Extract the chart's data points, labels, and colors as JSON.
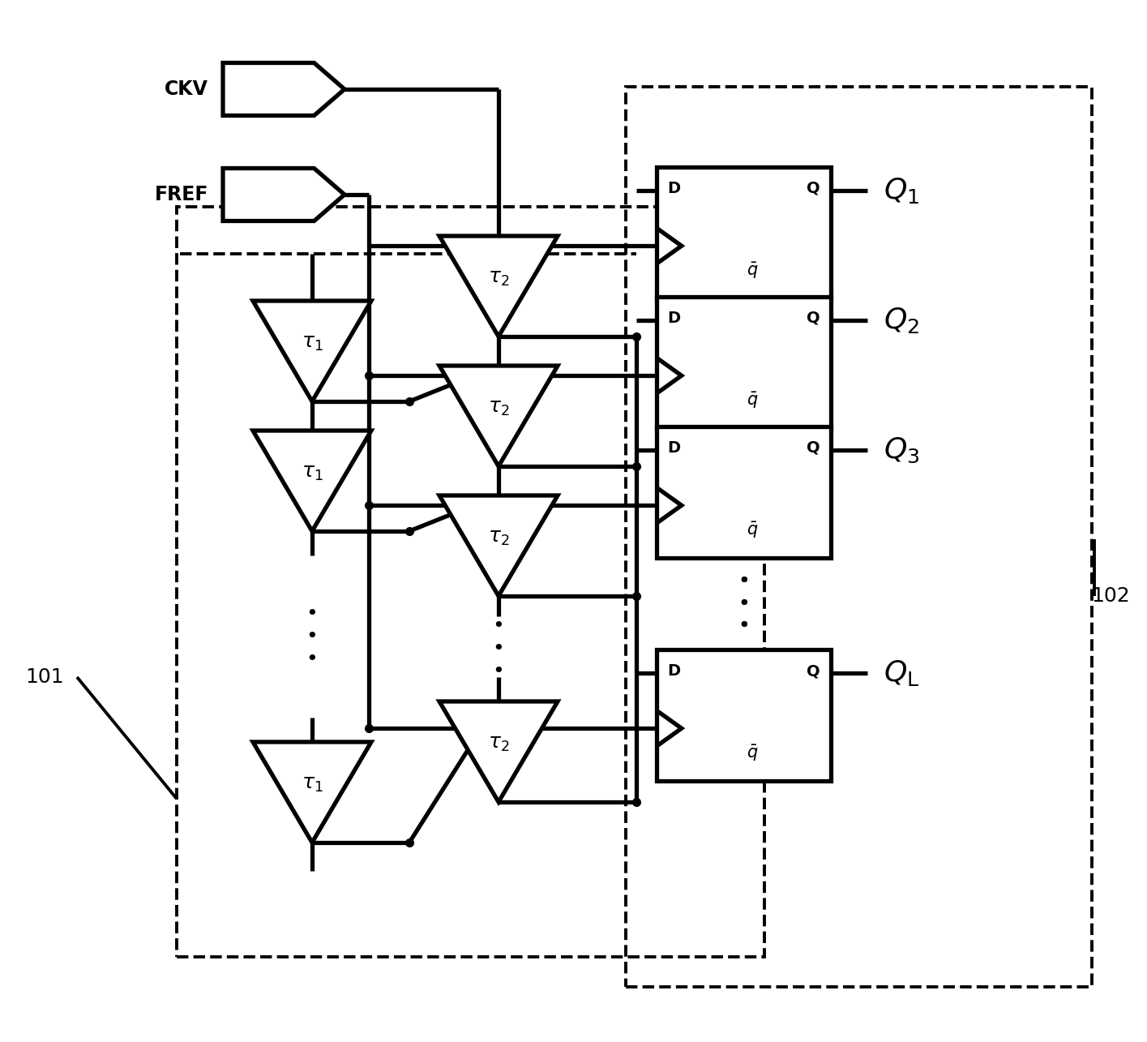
{
  "bg": "#ffffff",
  "lc": "#000000",
  "lw": 2.8,
  "tlw": 3.8,
  "fw": 14.15,
  "fh": 12.85,
  "dpi": 100,
  "xlim": [
    0,
    14.15
  ],
  "ylim": [
    0,
    12.85
  ],
  "ckv_label": "CKV",
  "fref_label": "FREF",
  "label_101": "101",
  "label_102": "102",
  "q_labels": [
    "$Q_1$",
    "$Q_2$",
    "$Q_3$",
    "$Q_{\\rm L}$"
  ]
}
